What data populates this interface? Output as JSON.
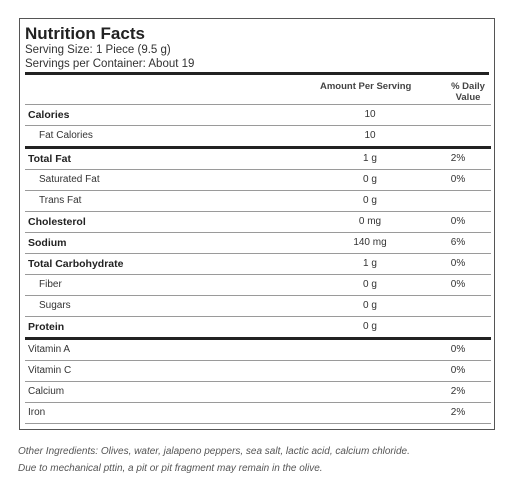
{
  "header": {
    "title": "Nutrition Facts",
    "serving_size": "Serving Size: 1 Piece (9.5 g)",
    "servings_per_container": "Servings per Container: About 19"
  },
  "columns": {
    "amount": "Amount Per Serving",
    "daily_value_line1": "% Daily",
    "daily_value_line2": "Value"
  },
  "rows": [
    {
      "name": "Calories",
      "amount": "10",
      "dv": ""
    },
    {
      "name": "Fat Calories",
      "amount": "10",
      "dv": ""
    },
    {
      "name": "Total Fat",
      "amount": "1 g",
      "dv": "2%"
    },
    {
      "name": "Saturated Fat",
      "amount": "0 g",
      "dv": "0%"
    },
    {
      "name": "Trans Fat",
      "amount": "0 g",
      "dv": ""
    },
    {
      "name": "Cholesterol",
      "amount": "0 mg",
      "dv": "0%"
    },
    {
      "name": "Sodium",
      "amount": "140 mg",
      "dv": "6%"
    },
    {
      "name": "Total Carbohydrate",
      "amount": "1 g",
      "dv": "0%"
    },
    {
      "name": "Fiber",
      "amount": "0 g",
      "dv": "0%"
    },
    {
      "name": "Sugars",
      "amount": "0 g",
      "dv": ""
    },
    {
      "name": "Protein",
      "amount": "0 g",
      "dv": ""
    },
    {
      "name": "Vitamin A",
      "amount": "",
      "dv": "0%"
    },
    {
      "name": "Vitamin C",
      "amount": "",
      "dv": "0%"
    },
    {
      "name": "Calcium",
      "amount": "",
      "dv": "2%"
    },
    {
      "name": "Iron",
      "amount": "",
      "dv": "2%"
    }
  ],
  "notes": {
    "ingredients": "Other Ingredients: Olives, water, jalapeno peppers, sea salt, lactic acid, calcium chloride.",
    "pit_warning": "Due to mechanical pttin, a pit or pit fragment may remain in the olive."
  }
}
